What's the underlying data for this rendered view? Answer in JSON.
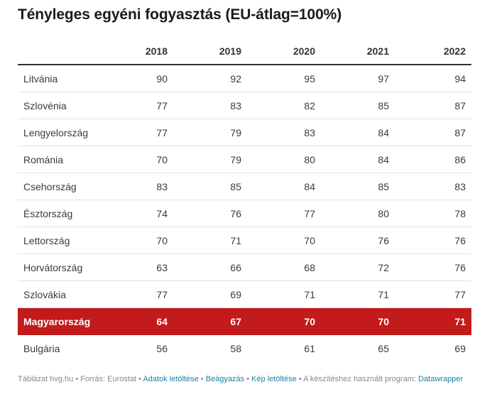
{
  "title": "Tényleges egyéni fogyasztás (EU-átlag=100%)",
  "chart_data": {
    "type": "table",
    "title": "Tényleges egyéni fogyasztás (EU-átlag=100%)",
    "columns": [
      "",
      "2018",
      "2019",
      "2020",
      "2021",
      "2022"
    ],
    "rows": [
      {
        "name": "Litvánia",
        "values": [
          90,
          92,
          95,
          97,
          94
        ]
      },
      {
        "name": "Szlovénia",
        "values": [
          77,
          83,
          82,
          85,
          87
        ]
      },
      {
        "name": "Lengyelország",
        "values": [
          77,
          79,
          83,
          84,
          87
        ]
      },
      {
        "name": "Románia",
        "values": [
          70,
          79,
          80,
          84,
          86
        ]
      },
      {
        "name": "Csehország",
        "values": [
          83,
          85,
          84,
          85,
          83
        ]
      },
      {
        "name": "Észtország",
        "values": [
          74,
          76,
          77,
          80,
          78
        ]
      },
      {
        "name": "Lettország",
        "values": [
          70,
          71,
          70,
          76,
          76
        ]
      },
      {
        "name": "Horvátország",
        "values": [
          63,
          66,
          68,
          72,
          76
        ]
      },
      {
        "name": "Szlovákia",
        "values": [
          77,
          69,
          71,
          71,
          77
        ]
      },
      {
        "name": "Magyarország",
        "values": [
          64,
          67,
          70,
          70,
          71
        ],
        "highlight": true
      },
      {
        "name": "Bulgária",
        "values": [
          56,
          58,
          61,
          65,
          69
        ]
      }
    ],
    "highlight_color": "#c31b1b"
  },
  "footer": {
    "prefix": "Táblázat hvg.hu • Forrás: Eurostat • ",
    "download_data": "Adatok letöltése",
    "sep1": " • ",
    "embed": "Beágyazás",
    "sep2": " • ",
    "download_image": "Kép letöltése",
    "middle": " • A készítéshez használt program: ",
    "program": "Datawrapper"
  }
}
